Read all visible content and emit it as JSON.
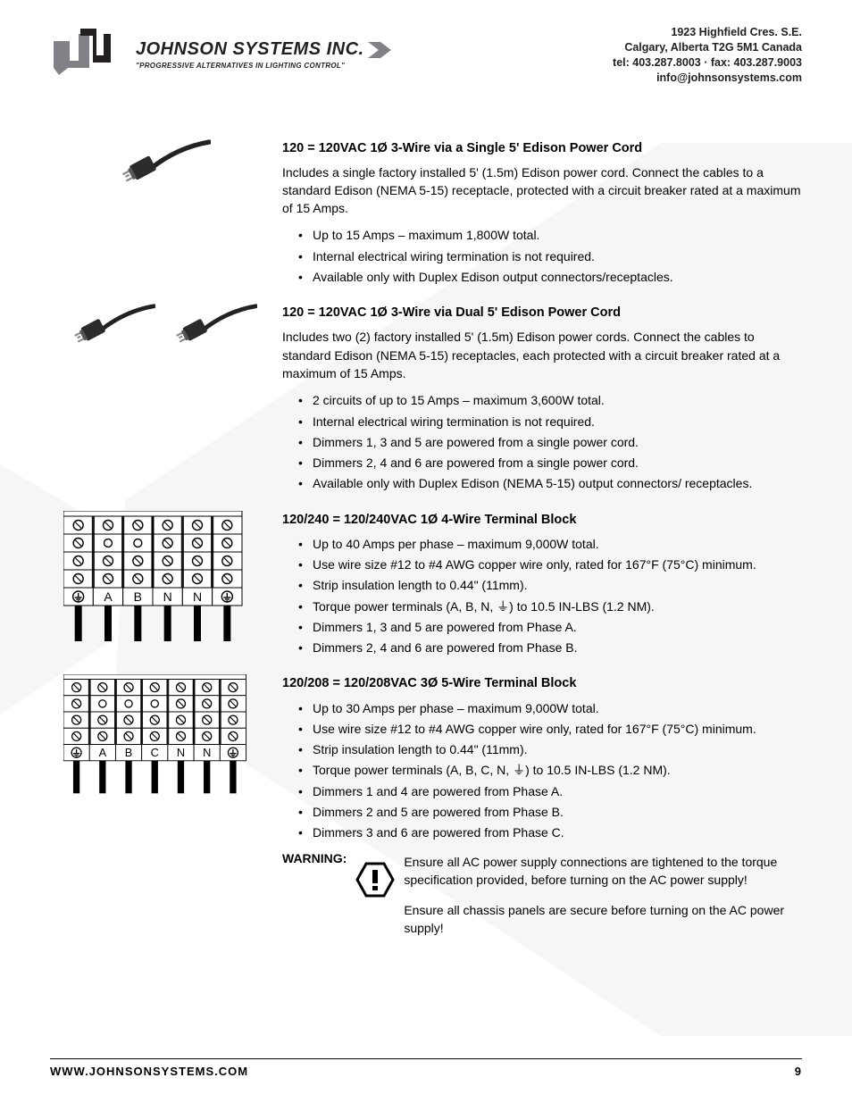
{
  "header": {
    "company": "JOHNSON SYSTEMS INC.",
    "tagline": "\"PROGRESSIVE ALTERNATIVES IN LIGHTING CONTROL\"",
    "address_lines": [
      "1923 Highfield Cres. S.E.",
      "Calgary, Alberta  T2G 5M1 Canada",
      "tel: 403.287.8003 · fax: 403.287.9003",
      "info@johnsonsystems.com"
    ]
  },
  "sections": [
    {
      "heading": "120 = 120VAC 1Ø 3-Wire via a Single 5' Edison Power Cord",
      "para": "Includes a single factory installed 5' (1.5m) Edison power cord. Connect the cables to a standard Edison (NEMA 5-15) receptacle, protected with a circuit breaker rated at a maximum of 15 Amps.",
      "bullets": [
        "Up to 15 Amps – maximum 1,800W total.",
        "Internal electrical wiring termination is not required.",
        "Available only with Duplex Edison output connectors/receptacles."
      ]
    },
    {
      "heading": "120 = 120VAC 1Ø 3-Wire via Dual 5' Edison Power Cord",
      "para": "Includes two (2) factory installed 5' (1.5m) Edison power cords. Connect the cables to standard Edison (NEMA 5-15) receptacles, each protected with a circuit breaker rated at a maximum of 15 Amps.",
      "bullets": [
        "2 circuits of up to 15 Amps – maximum 3,600W total.",
        "Internal electrical wiring termination is not required.",
        "Dimmers 1, 3 and 5 are powered from a single power cord.",
        "Dimmers 2, 4 and 6 are powered from a single power cord.",
        "Available only with Duplex Edison (NEMA 5-15) output connectors/ receptacles."
      ]
    },
    {
      "heading": "120/240 = 120/240VAC 1Ø 4-Wire Terminal Block",
      "bullets": [
        "Up to 40 Amps per phase – maximum 9,000W total.",
        "Use wire size #12 to #4 AWG copper wire only, rated for 167°F (75°C) minimum.",
        "Strip insulation length to 0.44\" (11mm).",
        "Torque power terminals (A, B, N, ⏚) to 10.5 IN-LBS (1.2 NM).",
        "Dimmers 1, 3 and 5 are powered from Phase A.",
        "Dimmers 2, 4 and 6 are powered from Phase B."
      ]
    },
    {
      "heading": "120/208 = 120/208VAC 3Ø 5-Wire Terminal Block",
      "bullets": [
        "Up to 30 Amps per phase – maximum 9,000W total.",
        "Use wire size #12 to #4 AWG copper wire only, rated for 167°F (75°C) minimum.",
        "Strip insulation length to 0.44\" (11mm).",
        "Torque power terminals (A, B, C, N, ⏚) to 10.5 IN-LBS (1.2 NM).",
        "Dimmers 1 and 4 are powered from Phase A.",
        "Dimmers 2 and 5 are powered from Phase B.",
        "Dimmers 3 and 6 are powered from Phase C."
      ]
    }
  ],
  "terminal_block_4wire": {
    "cols": 6,
    "labels": [
      "⏚",
      "A",
      "B",
      "N",
      "N",
      "⏚"
    ]
  },
  "terminal_block_5wire": {
    "cols": 7,
    "labels": [
      "⏚",
      "A",
      "B",
      "C",
      "N",
      "N",
      "⏚"
    ]
  },
  "warning": {
    "label": "WARNING:",
    "body1": "Ensure all AC power supply connections are tightened to the torque specification provided, before turning on the AC power supply!",
    "body2": "Ensure all chassis panels are secure before turning on the AC power supply!"
  },
  "footer": {
    "url": "WWW.JOHNSONSYSTEMS.COM",
    "page": "9"
  },
  "colors": {
    "text": "#000000",
    "watermark": "#f4f4f4",
    "logo_grey": "#808285",
    "logo_dark": "#231f20"
  }
}
